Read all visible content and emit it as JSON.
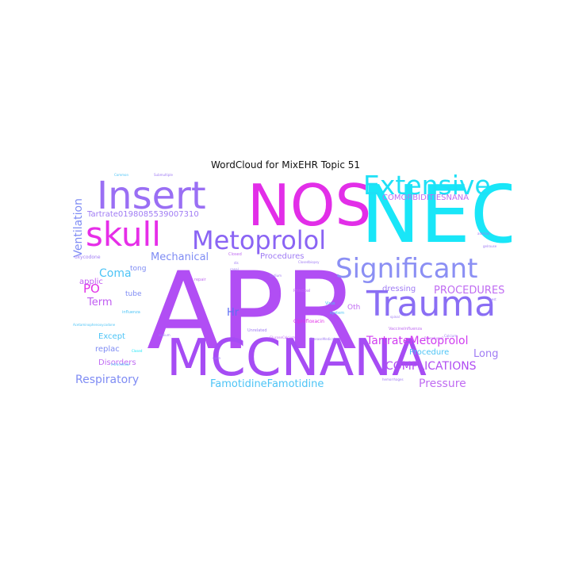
{
  "chart_data": {
    "type": "wordcloud",
    "title": "WordCloud for MixEHR Topic 51",
    "colors": [
      "#19e6f8",
      "#a64cf4",
      "#e62ee8",
      "#7f8cf4",
      "#c06cf2",
      "#4dc8f6"
    ],
    "words": [
      {
        "text": "APR",
        "weight": 100,
        "color": "#b14ef4",
        "vertical": false
      },
      {
        "text": "NEC",
        "weight": 85,
        "color": "#19e6f8",
        "vertical": false
      },
      {
        "text": "NOS",
        "weight": 66,
        "color": "#e22ee8",
        "vertical": false
      },
      {
        "text": "MCCNANA",
        "weight": 58,
        "color": "#a64cf4",
        "vertical": false
      },
      {
        "text": "Insert",
        "weight": 46,
        "color": "#9a6ff4",
        "vertical": false
      },
      {
        "text": "Trauma",
        "weight": 42,
        "color": "#8a6ef4",
        "vertical": false
      },
      {
        "text": "skull",
        "weight": 40,
        "color": "#e62ee8",
        "vertical": false
      },
      {
        "text": "Significant",
        "weight": 32,
        "color": "#8b8ff4",
        "vertical": false
      },
      {
        "text": "Extensive",
        "weight": 31,
        "color": "#1ee0f6",
        "vertical": false
      },
      {
        "text": "Metoprolol",
        "weight": 30,
        "color": "#8a64f4",
        "vertical": false
      },
      {
        "text": "TartrateMetoprolol",
        "weight": 15,
        "color": "#d03cf0",
        "vertical": false
      },
      {
        "text": "COMPLICATIONS",
        "weight": 14,
        "color": "#b04cf2",
        "vertical": false
      },
      {
        "text": "FamotidineFamotidine",
        "weight": 13,
        "color": "#4dc4f6",
        "vertical": false
      },
      {
        "text": "Respiratory",
        "weight": 14,
        "color": "#7f8cf4",
        "vertical": false
      },
      {
        "text": "Pressure",
        "weight": 14,
        "color": "#c06cf2",
        "vertical": false
      },
      {
        "text": "PROCEDURES",
        "weight": 13,
        "color": "#c06cf2",
        "vertical": false
      },
      {
        "text": "Mechanical",
        "weight": 13,
        "color": "#7f8cf4",
        "vertical": false
      },
      {
        "text": "Ventilation",
        "weight": 14,
        "color": "#7f8cf4",
        "vertical": true
      },
      {
        "text": "Coma",
        "weight": 14,
        "color": "#4dc4f6",
        "vertical": false
      },
      {
        "text": "PO",
        "weight": 15,
        "color": "#e22ee8",
        "vertical": false
      },
      {
        "text": "Term",
        "weight": 13,
        "color": "#c05cf2",
        "vertical": false
      },
      {
        "text": "Hr",
        "weight": 13,
        "color": "#5d6ff4",
        "vertical": false
      },
      {
        "text": "Long",
        "weight": 13,
        "color": "#a07cf4",
        "vertical": false
      },
      {
        "text": "COMORBIDITIESNANA",
        "weight": 10,
        "color": "#c06cf2",
        "vertical": false
      },
      {
        "text": "Tartrate0198085539007310",
        "weight": 10,
        "color": "#a07cf4",
        "vertical": false
      },
      {
        "text": "Procedures",
        "weight": 10,
        "color": "#a07cf4",
        "vertical": false
      },
      {
        "text": "applic",
        "weight": 10,
        "color": "#c05cf2",
        "vertical": false
      },
      {
        "text": "Except",
        "weight": 10,
        "color": "#4dc4f6",
        "vertical": false
      },
      {
        "text": "Disorders",
        "weight": 10,
        "color": "#c06cf2",
        "vertical": false
      },
      {
        "text": "replac",
        "weight": 10,
        "color": "#7f8cf4",
        "vertical": false
      },
      {
        "text": "Procedure",
        "weight": 10,
        "color": "#4dc4f6",
        "vertical": false
      },
      {
        "text": "dressing",
        "weight": 10,
        "color": "#a07cf4",
        "vertical": false
      },
      {
        "text": "tong",
        "weight": 9,
        "color": "#7f8cf4",
        "vertical": false
      },
      {
        "text": "tube",
        "weight": 9,
        "color": "#7f8cf4",
        "vertical": false
      },
      {
        "text": "Oth",
        "weight": 9,
        "color": "#c06cf2",
        "vertical": false
      },
      {
        "text": "oxycodone",
        "weight": 6,
        "color": "#a07cf4",
        "vertical": false
      },
      {
        "text": "Ciprofloxacin",
        "weight": 6,
        "color": "#e22ee8",
        "vertical": false
      },
      {
        "text": "Principal",
        "weight": 5,
        "color": "#c06cf2",
        "vertical": false
      },
      {
        "text": "Virus",
        "weight": 5,
        "color": "#4dc4f6",
        "vertical": false
      },
      {
        "text": "VaccineInfluenza",
        "weight": 5,
        "color": "#c06cf2",
        "vertical": false
      },
      {
        "text": "repair",
        "weight": 5,
        "color": "#c06cf2",
        "vertical": false
      },
      {
        "text": "Closed",
        "weight": 5,
        "color": "#c06cf2",
        "vertical": false
      },
      {
        "text": "Unrelated",
        "weight": 5,
        "color": "#a07cf4",
        "vertical": false
      },
      {
        "text": "influenza",
        "weight": 5,
        "color": "#4dc4f6",
        "vertical": false
      },
      {
        "text": "system",
        "weight": 4,
        "color": "#4dc4f6",
        "vertical": false
      },
      {
        "text": "sodium",
        "weight": 4,
        "color": "#a07cf4",
        "vertical": false
      },
      {
        "text": "upon",
        "weight": 4,
        "color": "#a07cf4",
        "vertical": false
      },
      {
        "text": "spinal",
        "weight": 4,
        "color": "#a07cf4",
        "vertical": false
      },
      {
        "text": "chest",
        "weight": 4,
        "color": "#a07cf4",
        "vertical": false
      },
      {
        "text": "Closed",
        "weight": 4,
        "color": "#19e6f8",
        "vertical": false
      },
      {
        "text": "dis",
        "weight": 4,
        "color": "#a07cf4",
        "vertical": false
      },
      {
        "text": "canal",
        "weight": 4,
        "color": "#a07cf4",
        "vertical": false
      },
      {
        "text": "Sodium",
        "weight": 4,
        "color": "#a07cf4",
        "vertical": false
      },
      {
        "text": "Submultiple",
        "weight": 4,
        "color": "#a07cf4",
        "vertical": false
      },
      {
        "text": "Calcium",
        "weight": 4,
        "color": "#a07cf4",
        "vertical": false
      },
      {
        "text": "hemorrhages",
        "weight": 4,
        "color": "#a07cf4",
        "vertical": false
      },
      {
        "text": "gelrouse",
        "weight": 4,
        "color": "#a07cf4",
        "vertical": false
      },
      {
        "text": "Procedures2",
        "weight": 4,
        "color": "#c06cf2",
        "vertical": false
      },
      {
        "text": "Acetaminophenoxycodone",
        "weight": 4,
        "color": "#4dc4f6",
        "vertical": false
      },
      {
        "text": "GlucoseCalcium",
        "weight": 4,
        "color": "#c06cf2",
        "vertical": false
      },
      {
        "text": "adrenal",
        "weight": 4,
        "color": "#a07cf4",
        "vertical": false
      },
      {
        "text": "Closedbiopsy",
        "weight": 4,
        "color": "#a07cf4",
        "vertical": false
      },
      {
        "text": "Intracellular",
        "weight": 4,
        "color": "#4dc4f6",
        "vertical": false
      },
      {
        "text": "DiseaseMedical",
        "weight": 4,
        "color": "#a07cf4",
        "vertical": false
      },
      {
        "text": "Common",
        "weight": 4,
        "color": "#4dc4f6",
        "vertical": false
      }
    ]
  }
}
